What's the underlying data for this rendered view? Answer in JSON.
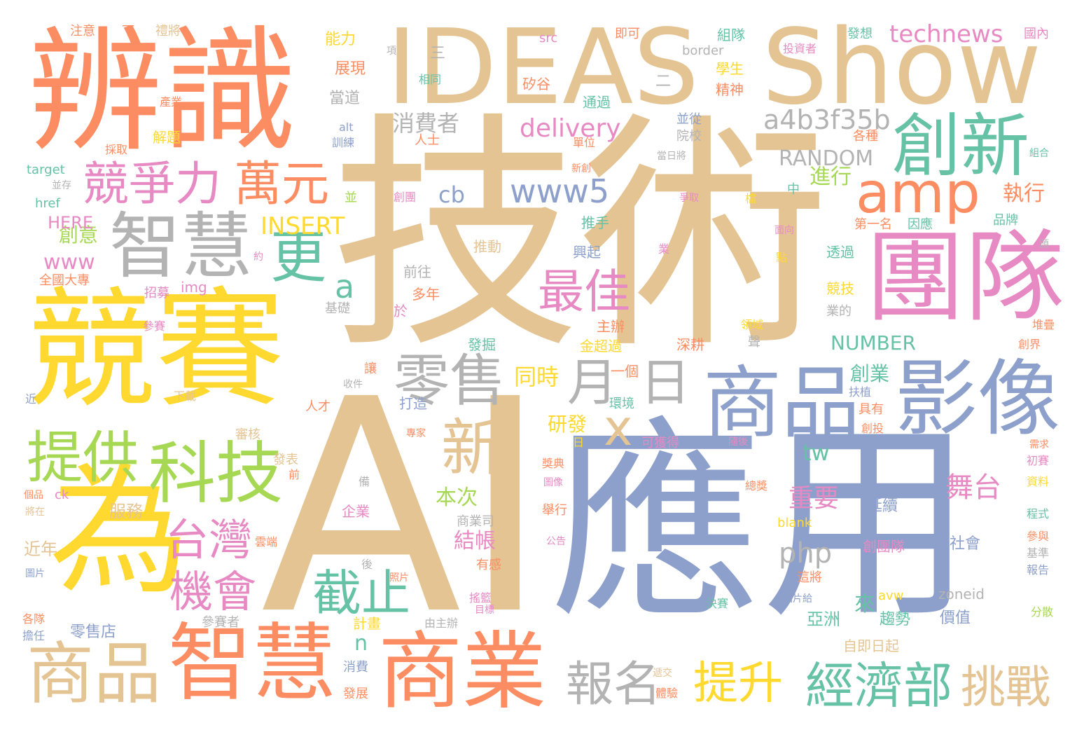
{
  "palette": {
    "tan": "#E5C494",
    "periwinkle": "#8DA0CB",
    "orange": "#FC8D62",
    "yellow": "#FFD92F",
    "green": "#A6D854",
    "teal": "#66C2A5",
    "pink": "#E78AC3",
    "gray": "#B3B3B3",
    "background": "#FFFFFF"
  },
  "words": [
    {
      "text": "技術",
      "color": "tan"
    },
    {
      "text": "AI",
      "color": "tan"
    },
    {
      "text": "應用",
      "color": "periwinkle"
    },
    {
      "text": "IDEAS",
      "color": "tan"
    },
    {
      "text": "Show",
      "color": "tan"
    },
    {
      "text": "辨識",
      "color": "orange"
    },
    {
      "text": "競賽",
      "color": "yellow"
    },
    {
      "text": "為",
      "color": "yellow"
    },
    {
      "text": "團隊",
      "color": "pink"
    },
    {
      "text": "商品",
      "color": "periwinkle"
    },
    {
      "text": "影像",
      "color": "periwinkle"
    },
    {
      "text": "智慧",
      "color": "orange"
    },
    {
      "text": "商業",
      "color": "orange"
    },
    {
      "text": "商品",
      "color": "tan"
    },
    {
      "text": "創新",
      "color": "teal"
    },
    {
      "text": "amp",
      "color": "orange"
    },
    {
      "text": "智慧",
      "color": "gray"
    },
    {
      "text": "零售",
      "color": "gray"
    },
    {
      "text": "科技",
      "color": "green"
    },
    {
      "text": "提供",
      "color": "green"
    },
    {
      "text": "競爭力",
      "color": "pink"
    },
    {
      "text": "萬元",
      "color": "orange"
    },
    {
      "text": "更",
      "color": "teal"
    },
    {
      "text": "月",
      "color": "gray"
    },
    {
      "text": "日",
      "color": "gray"
    },
    {
      "text": "新",
      "color": "tan"
    },
    {
      "text": "x",
      "color": "tan"
    },
    {
      "text": "最佳",
      "color": "pink"
    },
    {
      "text": "台灣",
      "color": "pink"
    },
    {
      "text": "機會",
      "color": "pink"
    },
    {
      "text": "截止",
      "color": "teal"
    },
    {
      "text": "經濟部",
      "color": "teal"
    },
    {
      "text": "報名",
      "color": "gray"
    },
    {
      "text": "提升",
      "color": "yellow"
    },
    {
      "text": "挑戰",
      "color": "tan"
    },
    {
      "text": "www5",
      "color": "periwinkle"
    },
    {
      "text": "a",
      "color": "teal"
    },
    {
      "text": "a4b3f35b",
      "color": "gray"
    },
    {
      "text": "delivery",
      "color": "pink"
    },
    {
      "text": "technews",
      "color": "pink"
    },
    {
      "text": "INSERT",
      "color": "yellow"
    },
    {
      "text": "舞台",
      "color": "pink"
    },
    {
      "text": "www",
      "color": "pink"
    },
    {
      "text": "cb",
      "color": "periwinkle"
    },
    {
      "text": "php",
      "color": "gray"
    },
    {
      "text": "RANDOM",
      "color": "gray"
    },
    {
      "text": "NUMBER",
      "color": "teal"
    },
    {
      "text": "消費者",
      "color": "gray"
    },
    {
      "text": "重要",
      "color": "pink"
    },
    {
      "text": "結帳",
      "color": "pink"
    },
    {
      "text": "本次",
      "color": "green"
    },
    {
      "text": "同時",
      "color": "yellow"
    },
    {
      "text": "研發",
      "color": "yellow"
    },
    {
      "text": "創意",
      "color": "green"
    },
    {
      "text": "執行",
      "color": "orange"
    },
    {
      "text": "進行",
      "color": "green"
    },
    {
      "text": "創業",
      "color": "teal"
    },
    {
      "text": "tw",
      "color": "teal"
    },
    {
      "text": "n",
      "color": "teal"
    },
    {
      "text": "HERE",
      "color": "pink"
    },
    {
      "text": "來",
      "color": "teal"
    },
    {
      "text": "亞洲",
      "color": "teal"
    },
    {
      "text": "服務",
      "color": "tan"
    },
    {
      "text": "近年",
      "color": "tan"
    },
    {
      "text": "延續",
      "color": "periwinkle"
    },
    {
      "text": "創團隊",
      "color": "pink"
    },
    {
      "text": "社會",
      "color": "periwinkle"
    },
    {
      "text": "價值",
      "color": "periwinkle"
    },
    {
      "text": "趨勢",
      "color": "teal"
    },
    {
      "text": "零售店",
      "color": "periwinkle"
    },
    {
      "text": "自即日起",
      "color": "tan"
    },
    {
      "text": "推動",
      "color": "tan"
    },
    {
      "text": "推手",
      "color": "teal"
    },
    {
      "text": "興起",
      "color": "periwinkle"
    },
    {
      "text": "透過",
      "color": "teal"
    },
    {
      "text": "競技",
      "color": "yellow"
    },
    {
      "text": "深耕",
      "color": "orange"
    },
    {
      "text": "主辦",
      "color": "orange"
    },
    {
      "text": "金超過",
      "color": "yellow"
    },
    {
      "text": "一個",
      "color": "orange"
    },
    {
      "text": "發掘",
      "color": "teal"
    },
    {
      "text": "能力",
      "color": "yellow"
    },
    {
      "text": "展現",
      "color": "orange"
    },
    {
      "text": "當道",
      "color": "gray"
    },
    {
      "text": "組隊",
      "color": "teal"
    },
    {
      "text": "精神",
      "color": "orange"
    },
    {
      "text": "學生",
      "color": "yellow"
    },
    {
      "text": "通過",
      "color": "teal"
    },
    {
      "text": "矽谷",
      "color": "orange"
    },
    {
      "text": "相同",
      "color": "teal"
    },
    {
      "text": "注意",
      "color": "orange"
    },
    {
      "text": "即可",
      "color": "orange"
    },
    {
      "text": "投資者",
      "color": "pink"
    },
    {
      "text": "國內",
      "color": "pink"
    },
    {
      "text": "發想",
      "color": "teal"
    },
    {
      "text": "border",
      "color": "gray"
    },
    {
      "text": "src",
      "color": "pink"
    },
    {
      "text": "alt",
      "color": "periwinkle"
    },
    {
      "text": "target",
      "color": "teal"
    },
    {
      "text": "href",
      "color": "teal"
    },
    {
      "text": "img",
      "color": "pink"
    },
    {
      "text": "ck",
      "color": "pink"
    },
    {
      "text": "blank",
      "color": "yellow"
    },
    {
      "text": "zoneid",
      "color": "gray"
    },
    {
      "text": "avw",
      "color": "yellow"
    },
    {
      "text": "全國大專",
      "color": "orange"
    },
    {
      "text": "招募",
      "color": "pink"
    },
    {
      "text": "參賽",
      "color": "pink"
    },
    {
      "text": "基礎",
      "color": "gray"
    },
    {
      "text": "多年",
      "color": "orange"
    },
    {
      "text": "前往",
      "color": "gray"
    },
    {
      "text": "於",
      "color": "pink"
    },
    {
      "text": "解題",
      "color": "yellow"
    },
    {
      "text": "人士",
      "color": "orange"
    },
    {
      "text": "院校",
      "color": "gray"
    },
    {
      "text": "並從",
      "color": "periwinkle"
    },
    {
      "text": "單位",
      "color": "orange"
    },
    {
      "text": "各種",
      "color": "orange"
    },
    {
      "text": "訓練",
      "color": "periwinkle"
    },
    {
      "text": "採取",
      "color": "orange"
    },
    {
      "text": "產業",
      "color": "orange"
    },
    {
      "text": "打造",
      "color": "periwinkle"
    },
    {
      "text": "人才",
      "color": "orange"
    },
    {
      "text": "下載",
      "color": "tan"
    },
    {
      "text": "審核",
      "color": "tan"
    },
    {
      "text": "發表",
      "color": "tan"
    },
    {
      "text": "可獲得",
      "color": "pink"
    },
    {
      "text": "環境",
      "color": "teal"
    },
    {
      "text": "扶植",
      "color": "periwinkle"
    },
    {
      "text": "具有",
      "color": "orange"
    },
    {
      "text": "創投",
      "color": "orange"
    },
    {
      "text": "品牌",
      "color": "teal"
    },
    {
      "text": "因應",
      "color": "teal"
    },
    {
      "text": "第一名",
      "color": "orange"
    },
    {
      "text": "業的",
      "color": "gray"
    },
    {
      "text": "領域",
      "color": "yellow"
    },
    {
      "text": "堆疊",
      "color": "orange"
    },
    {
      "text": "創界",
      "color": "orange"
    },
    {
      "text": "初賽",
      "color": "pink"
    },
    {
      "text": "資料",
      "color": "yellow"
    },
    {
      "text": "程式",
      "color": "teal"
    },
    {
      "text": "參與",
      "color": "orange"
    },
    {
      "text": "基準",
      "color": "gray"
    },
    {
      "text": "報告",
      "color": "periwinkle"
    },
    {
      "text": "分散",
      "color": "green"
    },
    {
      "text": "決賽",
      "color": "teal"
    },
    {
      "text": "圖片給",
      "color": "periwinkle"
    },
    {
      "text": "這將",
      "color": "orange"
    },
    {
      "text": "總獎",
      "color": "orange"
    },
    {
      "text": "企業",
      "color": "pink"
    },
    {
      "text": "商業司",
      "color": "gray"
    },
    {
      "text": "有感",
      "color": "orange"
    },
    {
      "text": "搖籃",
      "color": "pink"
    },
    {
      "text": "計畫",
      "color": "yellow"
    },
    {
      "text": "消費",
      "color": "periwinkle"
    },
    {
      "text": "發展",
      "color": "orange"
    },
    {
      "text": "由主辦",
      "color": "gray"
    },
    {
      "text": "參賽者",
      "color": "gray"
    },
    {
      "text": "遞交",
      "color": "tan"
    },
    {
      "text": "體驗",
      "color": "orange"
    },
    {
      "text": "各隊",
      "color": "orange"
    },
    {
      "text": "擔任",
      "color": "periwinkle"
    },
    {
      "text": "圖片",
      "color": "periwinkle"
    },
    {
      "text": "雲端",
      "color": "orange"
    },
    {
      "text": "將在",
      "color": "tan"
    },
    {
      "text": "個品",
      "color": "orange"
    },
    {
      "text": "近",
      "color": "periwinkle"
    },
    {
      "text": "前",
      "color": "orange"
    },
    {
      "text": "備",
      "color": "gray"
    },
    {
      "text": "後",
      "color": "gray"
    },
    {
      "text": "照片",
      "color": "orange"
    },
    {
      "text": "公告",
      "color": "pink"
    },
    {
      "text": "舉行",
      "color": "orange"
    },
    {
      "text": "圖像",
      "color": "pink"
    },
    {
      "text": "獎典",
      "color": "orange"
    },
    {
      "text": "專家",
      "color": "orange"
    },
    {
      "text": "目標",
      "color": "pink"
    },
    {
      "text": "收件",
      "color": "gray"
    },
    {
      "text": "讓",
      "color": "orange"
    },
    {
      "text": "日",
      "color": "yellow"
    },
    {
      "text": "中",
      "color": "teal"
    },
    {
      "text": "並",
      "color": "green"
    },
    {
      "text": "創團",
      "color": "pink"
    },
    {
      "text": "新創",
      "color": "orange"
    },
    {
      "text": "當日將",
      "color": "gray"
    },
    {
      "text": "並存",
      "color": "gray"
    },
    {
      "text": "業",
      "color": "pink"
    },
    {
      "text": "點",
      "color": "yellow"
    },
    {
      "text": "面向",
      "color": "pink"
    },
    {
      "text": "爭取",
      "color": "pink"
    },
    {
      "text": "檔",
      "color": "yellow"
    },
    {
      "text": "項",
      "color": "gray"
    },
    {
      "text": "三",
      "color": "gray"
    },
    {
      "text": "二",
      "color": "gray"
    },
    {
      "text": "下",
      "color": "orange"
    },
    {
      "text": "禮將",
      "color": "tan"
    },
    {
      "text": "約",
      "color": "pink"
    },
    {
      "text": "組合",
      "color": "teal"
    },
    {
      "text": "頒",
      "color": "gray"
    },
    {
      "text": "需求",
      "color": "orange"
    },
    {
      "text": "隨後",
      "color": "pink"
    },
    {
      "text": "聲",
      "color": "gray"
    }
  ]
}
